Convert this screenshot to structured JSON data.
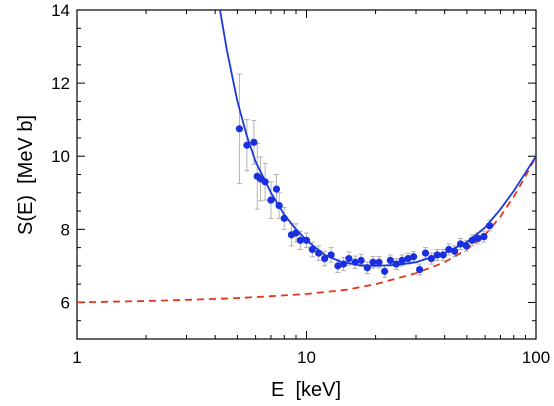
{
  "chart_data": {
    "type": "scatter",
    "title": "",
    "xlabel": "E  [keV]",
    "ylabel": "S(E)  [MeV b]",
    "xscale": "log",
    "xlim": [
      1,
      100
    ],
    "ylim": [
      5,
      14
    ],
    "x_ticks": [
      1,
      10,
      100
    ],
    "x_tick_labels": [
      "1",
      "10",
      "100"
    ],
    "y_ticks": [
      6,
      8,
      10,
      12,
      14
    ],
    "y_tick_labels": [
      "6",
      "8",
      "10",
      "12",
      "14"
    ],
    "grid": false,
    "legend": "none",
    "colors": {
      "points": "#1a2fe0",
      "fit": "#1a3ad8",
      "dashed": "#e8331a",
      "error": "#aaaaaa"
    },
    "series": [
      {
        "kind": "points",
        "x": [
          5.1,
          5.5,
          5.9,
          6.1,
          6.3,
          6.6,
          7.0,
          7.4,
          7.6,
          8.0,
          8.6,
          9.0,
          9.4,
          10.0,
          10.6,
          11.3,
          12.0,
          12.8,
          13.7,
          14.5,
          15.3,
          16.3,
          17.3,
          18.4,
          19.5,
          20.7,
          21.9,
          23.2,
          24.6,
          26.1,
          27.7,
          29.3,
          31.1,
          33.0,
          35.0,
          37.1,
          39.4,
          41.7,
          44.2,
          46.9,
          49.7,
          52.7,
          55.9,
          59.3,
          62.8
        ],
        "y": [
          10.75,
          10.3,
          10.38,
          9.45,
          9.38,
          9.3,
          8.8,
          9.1,
          8.65,
          8.3,
          7.85,
          7.9,
          7.7,
          7.7,
          7.45,
          7.35,
          7.2,
          7.3,
          7.0,
          7.05,
          7.2,
          7.1,
          7.15,
          6.95,
          7.1,
          7.1,
          6.85,
          7.15,
          7.05,
          7.15,
          7.2,
          7.25,
          6.9,
          7.35,
          7.2,
          7.3,
          7.3,
          7.45,
          7.4,
          7.6,
          7.55,
          7.7,
          7.75,
          7.8,
          8.1
        ],
        "error": [
          1.5,
          0.7,
          0.6,
          0.9,
          0.6,
          0.5,
          0.5,
          0.4,
          0.35,
          0.3,
          0.3,
          0.25,
          0.25,
          0.2,
          0.2,
          0.2,
          0.2,
          0.2,
          0.18,
          0.18,
          0.18,
          0.17,
          0.17,
          0.16,
          0.16,
          0.16,
          0.16,
          0.15,
          0.15,
          0.15,
          0.15,
          0.15,
          0.15,
          0.15,
          0.15,
          0.15,
          0.15,
          0.15,
          0.15,
          0.15,
          0.15,
          0.15,
          0.15,
          0.15,
          0.15
        ]
      },
      {
        "kind": "line",
        "style": "solid",
        "x": [
          4.2,
          4.5,
          5.0,
          5.5,
          6.0,
          7.0,
          8.0,
          9.0,
          10.0,
          12.0,
          14.0,
          17.0,
          20.0,
          25.0,
          30.0,
          40.0,
          50.0,
          60.0,
          70.0,
          80.0,
          90.0,
          100.0
        ],
        "y": [
          14.0,
          12.9,
          11.5,
          10.55,
          9.85,
          9.0,
          8.4,
          8.0,
          7.7,
          7.3,
          7.12,
          7.02,
          7.0,
          7.03,
          7.1,
          7.35,
          7.65,
          8.05,
          8.55,
          9.05,
          9.55,
          10.0
        ]
      },
      {
        "kind": "line",
        "style": "dashed",
        "x": [
          1.0,
          2.0,
          3.0,
          5.0,
          7.0,
          10.0,
          15.0,
          20.0,
          30.0,
          40.0,
          50.0,
          60.0,
          70.0,
          80.0,
          90.0,
          100.0
        ],
        "y": [
          6.0,
          6.04,
          6.07,
          6.12,
          6.17,
          6.23,
          6.35,
          6.5,
          6.8,
          7.1,
          7.45,
          7.85,
          8.35,
          8.9,
          9.45,
          10.0
        ]
      }
    ]
  }
}
